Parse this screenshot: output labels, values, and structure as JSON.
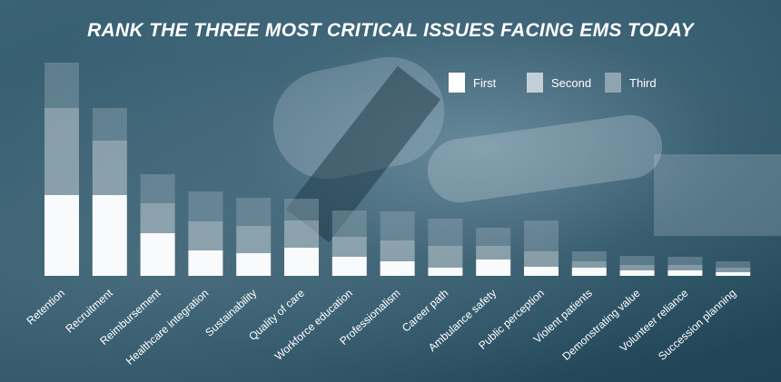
{
  "title": "RANK THE THREE MOST CRITICAL ISSUES FACING EMS TODAY",
  "legend": [
    {
      "label": "First",
      "color": "#ffffff"
    },
    {
      "label": "Second",
      "color": "#c4cfd5"
    },
    {
      "label": "Third",
      "color": "#8ea4b0"
    }
  ],
  "chart_data": {
    "type": "bar",
    "stacked": true,
    "title": "RANK THE THREE MOST CRITICAL ISSUES FACING EMS TODAY",
    "xlabel": "",
    "ylabel": "",
    "legend_position": "top-right",
    "grid": false,
    "categories": [
      "Retention",
      "Recruitment",
      "Reimbursement",
      "Healthcare integration",
      "Sustainability",
      "Quality of care",
      "Workforce education",
      "Professionalism",
      "Career path",
      "Ambulance safety",
      "Public perception",
      "Violent patients",
      "Demonstrating value",
      "Volunteer reliance",
      "Succession planning"
    ],
    "series": [
      {
        "name": "First",
        "values": [
          89,
          89,
          47,
          28,
          25,
          31,
          21,
          16,
          9,
          18,
          10,
          9,
          6,
          6,
          4
        ]
      },
      {
        "name": "Second",
        "values": [
          96,
          60,
          33,
          32,
          30,
          30,
          22,
          23,
          24,
          15,
          17,
          7,
          6,
          6,
          5
        ]
      },
      {
        "name": "Third",
        "values": [
          50,
          36,
          32,
          33,
          31,
          24,
          29,
          32,
          30,
          20,
          34,
          11,
          10,
          9,
          7
        ]
      }
    ],
    "ylim": [
      0,
      240
    ],
    "colors": [
      "#ffffff",
      "#c4cfd5",
      "#8ea4b0"
    ]
  }
}
